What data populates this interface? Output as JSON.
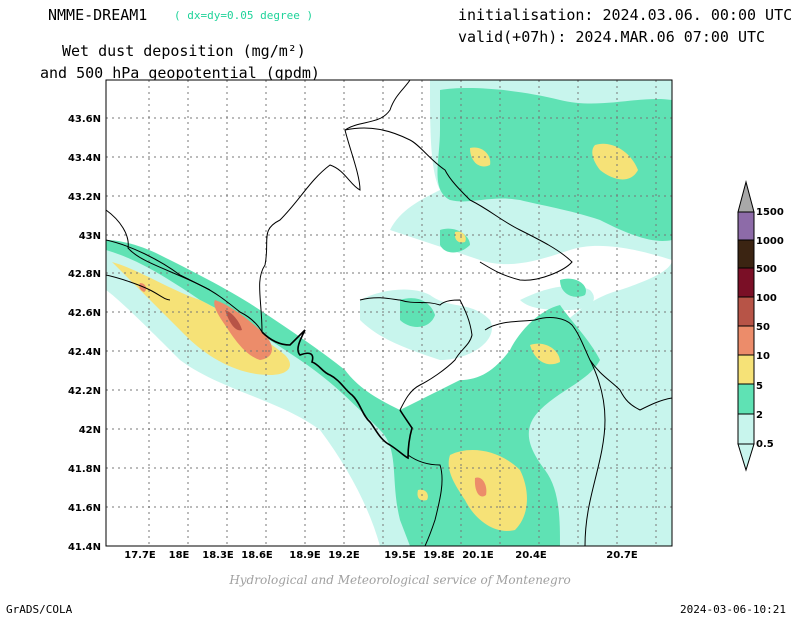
{
  "header": {
    "model": "NMME-DREAM1",
    "model_note": "( dx=dy=0.05 degree )",
    "title_line1": "Wet dust deposition (mg/m²)",
    "title_line2": "and 500 hPa geopotential (gpdm)",
    "initialisation": "initialisation: 2024.03.06. 00:00 UTC",
    "valid": "valid(+07h): 2024.MAR.06 07:00 UTC"
  },
  "map": {
    "lon_ticks": [
      "17.7E",
      "18E",
      "18.3E",
      "18.6E",
      "18.9E",
      "19.2E",
      "19.5E",
      "19.8E",
      "20.1E",
      "20.4E",
      "20.7E"
    ],
    "lat_ticks": [
      "43.6N",
      "43.4N",
      "43.2N",
      "43N",
      "42.8N",
      "42.6N",
      "42.4N",
      "42.2N",
      "42N",
      "41.8N",
      "41.6N",
      "41.4N"
    ],
    "lon_range": [
      17.5,
      21.0
    ],
    "lat_range": [
      41.4,
      43.8
    ]
  },
  "legend": {
    "levels": [
      "0.5",
      "2",
      "5",
      "10",
      "50",
      "100",
      "500",
      "1000",
      "1500"
    ],
    "colors": [
      "#c8f5ed",
      "#5fe2b4",
      "#f6e277",
      "#ec8c6a",
      "#b75447",
      "#7a0f26",
      "#3b2412",
      "#8d6ba8",
      "#a8a8a8"
    ]
  },
  "footer": {
    "credit": "Hydrological and Meteorological service of Montenegro",
    "software": "GrADS/COLA",
    "timestamp": "2024-03-06-10:21"
  }
}
